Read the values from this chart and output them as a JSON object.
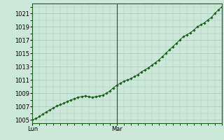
{
  "background_color": "#cce8d8",
  "plot_bg_color": "#cce8d8",
  "grid_color": "#aac8b8",
  "line_color": "#1a5c1a",
  "marker_color": "#1a5c1a",
  "ylim": [
    1004.5,
    1022.5
  ],
  "yticks": [
    1005,
    1007,
    1009,
    1011,
    1013,
    1015,
    1017,
    1019,
    1021
  ],
  "xtick_labels": [
    "Lun",
    "Mar"
  ],
  "vline_x": 24,
  "tick_fontsize": 6,
  "pressure_values": [
    1005.0,
    1005.2,
    1005.5,
    1005.9,
    1006.2,
    1006.5,
    1006.8,
    1007.1,
    1007.3,
    1007.5,
    1007.8,
    1008.0,
    1008.2,
    1008.4,
    1008.5,
    1008.6,
    1008.5,
    1008.4,
    1008.5,
    1008.6,
    1008.7,
    1009.0,
    1009.3,
    1009.8,
    1010.2,
    1010.5,
    1010.8,
    1011.0,
    1011.2,
    1011.5,
    1011.8,
    1012.2,
    1012.5,
    1012.8,
    1013.2,
    1013.6,
    1014.0,
    1014.5,
    1015.0,
    1015.5,
    1016.0,
    1016.5,
    1017.0,
    1017.5,
    1017.8,
    1018.1,
    1018.5,
    1019.0,
    1019.3,
    1019.6,
    1020.0,
    1020.4,
    1021.0,
    1021.5,
    1022.0
  ]
}
